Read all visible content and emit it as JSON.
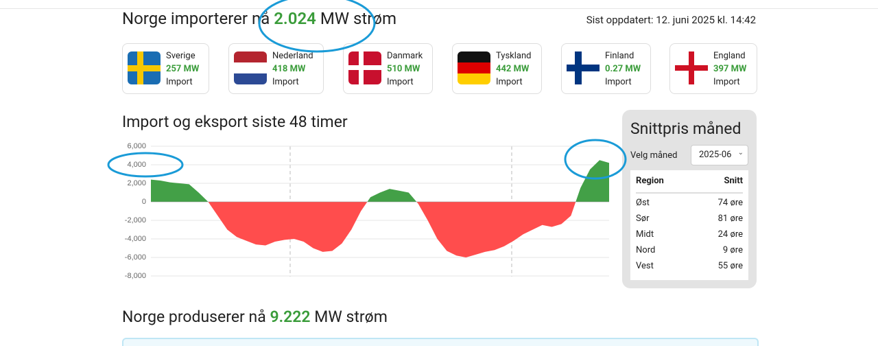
{
  "header": {
    "title_prefix": "Norge importerer nå",
    "title_value": "2.024",
    "title_suffix": "MW strøm",
    "updated": "Sist oppdatert: 12. juni 2025 kl. 14:42"
  },
  "countries": [
    {
      "name": "Sverige",
      "value": "257 MW",
      "status": "Import"
    },
    {
      "name": "Nederland",
      "value": "418 MW",
      "status": "Import"
    },
    {
      "name": "Danmark",
      "value": "510 MW",
      "status": "Import"
    },
    {
      "name": "Tyskland",
      "value": "442 MW",
      "status": "Import"
    },
    {
      "name": "Finland",
      "value": "0.27 MW",
      "status": "Import"
    },
    {
      "name": "England",
      "value": "397 MW",
      "status": "Import"
    }
  ],
  "chart_data": {
    "type": "area",
    "title": "Import og eksport siste 48 timer",
    "values": [
      2400,
      2300,
      2100,
      2000,
      1900,
      1000,
      0,
      -1500,
      -3000,
      -3800,
      -4200,
      -4600,
      -4700,
      -4300,
      -4100,
      -4000,
      -4300,
      -5000,
      -5400,
      -5300,
      -4500,
      -3000,
      -1000,
      500,
      1000,
      1400,
      1200,
      1000,
      -200,
      -2000,
      -4000,
      -5300,
      -5800,
      -6000,
      -5700,
      -5400,
      -5200,
      -4800,
      -4200,
      -3500,
      -3000,
      -2500,
      -2700,
      -2400,
      -1500,
      1500,
      3500,
      4500,
      4200
    ],
    "positive_color": "#43a047",
    "negative_color": "#ff4d4d",
    "ylim": [
      -8000,
      6000
    ],
    "yticks": [
      {
        "value": -8000,
        "label": "-8,000"
      },
      {
        "value": -6000,
        "label": "-6,000"
      },
      {
        "value": -4000,
        "label": "-4,000"
      },
      {
        "value": -2000,
        "label": "-2,000"
      },
      0,
      {
        "value": 2000,
        "label": "2,000"
      },
      {
        "value": 4000,
        "label": "4,000"
      },
      {
        "value": 6000,
        "label": "6,000"
      }
    ],
    "grid": true
  },
  "price_panel": {
    "title": "Snittpris måned",
    "select_label": "Velg måned",
    "selected": "2025-06",
    "columns": [
      "Region",
      "Snitt"
    ],
    "rows": [
      [
        "Øst",
        "74 øre"
      ],
      [
        "Sør",
        "81 øre"
      ],
      [
        "Midt",
        "24 øre"
      ],
      [
        "Nord",
        "9 øre"
      ],
      [
        "Vest",
        "55 øre"
      ]
    ]
  },
  "production": {
    "prefix": "Norge produserer nå",
    "value": "9.222",
    "suffix": "MW strøm"
  }
}
